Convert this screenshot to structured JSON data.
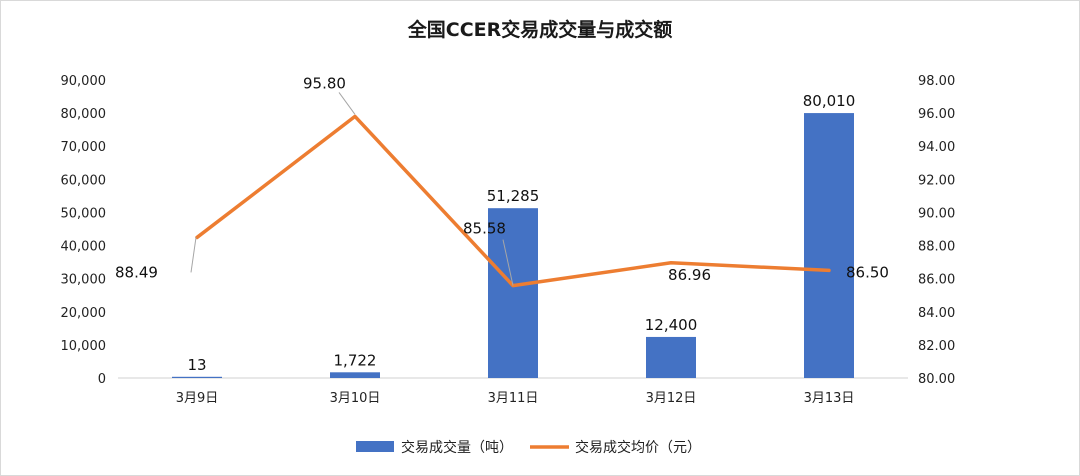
{
  "chart_data": {
    "type": "bar+line",
    "title": "全国CCER交易成交量与成交额",
    "categories": [
      "3月9日",
      "3月10日",
      "3月11日",
      "3月12日",
      "3月13日"
    ],
    "series": [
      {
        "name": "交易成交量（吨）",
        "type": "bar",
        "axis": "left",
        "color": "#4472C4",
        "values": [
          13,
          1722,
          51285,
          12400,
          80010
        ],
        "labels": [
          "13",
          "1,722",
          "51,285",
          "12,400",
          "80,010"
        ]
      },
      {
        "name": "交易成交均价（元）",
        "type": "line",
        "axis": "right",
        "color": "#ED7D31",
        "values": [
          88.49,
          95.8,
          85.58,
          86.96,
          86.5
        ],
        "labels": [
          "88.49",
          "95.80",
          "85.58",
          "86.96",
          "86.50"
        ]
      }
    ],
    "y_left": {
      "min": 0,
      "max": 90000,
      "ticks": [
        "0",
        "10,000",
        "20,000",
        "30,000",
        "40,000",
        "50,000",
        "60,000",
        "70,000",
        "80,000",
        "90,000"
      ]
    },
    "y_right": {
      "min": 80,
      "max": 98,
      "ticks": [
        "80.00",
        "82.00",
        "84.00",
        "86.00",
        "88.00",
        "90.00",
        "92.00",
        "94.00",
        "96.00",
        "98.00"
      ]
    },
    "grid": false,
    "legend": "bottom"
  }
}
